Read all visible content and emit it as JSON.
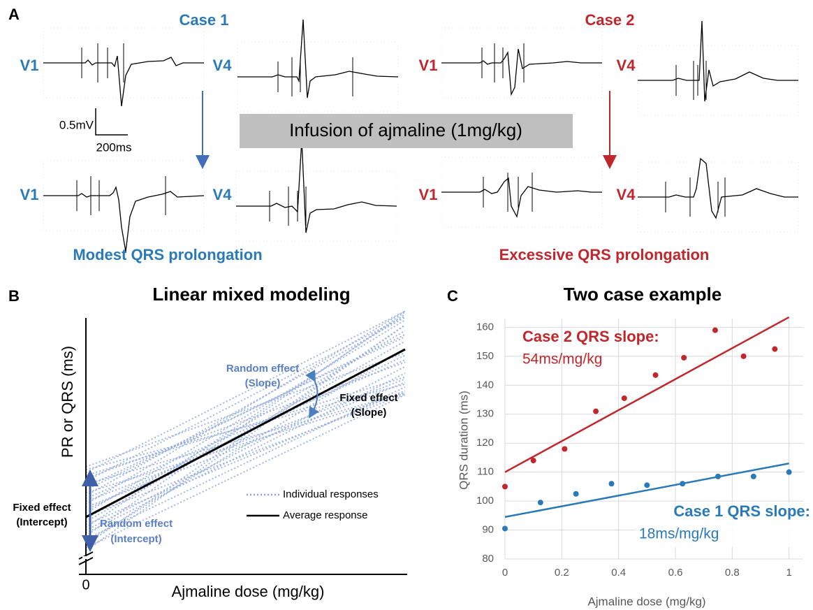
{
  "panel_a": {
    "label": "A",
    "case1_title": "Case 1",
    "case2_title": "Case 2",
    "leads": [
      "V1",
      "V4",
      "V1",
      "V4",
      "V1",
      "V4",
      "V1",
      "V4"
    ],
    "scale_voltage": "0.5mV",
    "scale_time": "200ms",
    "infusion": "Infusion of ajmaline (1mg/kg)",
    "case1_result": "Modest QRS prolongation",
    "case2_result": "Excessive QRS prolongation"
  },
  "panel_b": {
    "label": "B",
    "title": "Linear mixed modeling",
    "y_label": "PR or QRS (ms)",
    "x_label": "Ajmaline dose (mg/kg)",
    "x_origin": "0",
    "random_effect_slope": [
      "Random effect",
      "(Slope)"
    ],
    "fixed_effect_slope": [
      "Fixed effect",
      "(Slope)"
    ],
    "fixed_effect_intercept": [
      "Fixed effect",
      "(Intercept)"
    ],
    "random_effect_intercept": [
      "Random effect",
      "(Intercept)"
    ],
    "legend": [
      "Individual responses",
      "Average response"
    ]
  },
  "chart_data": {
    "type": "scatter",
    "panel_label": "C",
    "title": "Two case example",
    "x_label": "Ajmaline dose (mg/kg)",
    "y_label": "QRS duration (ms)",
    "xlim": [
      0,
      1.05
    ],
    "ylim": [
      80,
      163
    ],
    "xticks": [
      0,
      0.2,
      0.4,
      0.6,
      0.8,
      1
    ],
    "yticks": [
      80,
      90,
      100,
      110,
      120,
      130,
      140,
      150,
      160
    ],
    "grid": true,
    "series": [
      {
        "color": "#c0272d",
        "x": [
          0,
          0.1,
          0.21,
          0.32,
          0.42,
          0.53,
          0.63,
          0.74,
          0.84,
          0.95
        ],
        "values": [
          105,
          114,
          118,
          131,
          135.5,
          143.5,
          149.5,
          159,
          150,
          152.5
        ],
        "trendline": {
          "x": [
            0,
            1
          ],
          "values": [
            110,
            163.5
          ]
        }
      },
      {
        "color": "#2a7ab8",
        "x": [
          0,
          0.125,
          0.25,
          0.375,
          0.5,
          0.625,
          0.75,
          0.875,
          1
        ],
        "values": [
          90.5,
          99.5,
          102.5,
          106,
          105.5,
          106,
          108.5,
          108.5,
          110
        ],
        "trendline": {
          "x": [
            0,
            1
          ],
          "values": [
            94.5,
            113
          ]
        }
      }
    ],
    "annotations": [
      {
        "text": "Case 2 QRS slope:",
        "subtext": "54ms/mg/kg",
        "color": "#c0272d"
      },
      {
        "text": "Case 1 QRS slope:",
        "subtext": "18ms/mg/kg",
        "color": "#2a7ab8"
      }
    ]
  }
}
